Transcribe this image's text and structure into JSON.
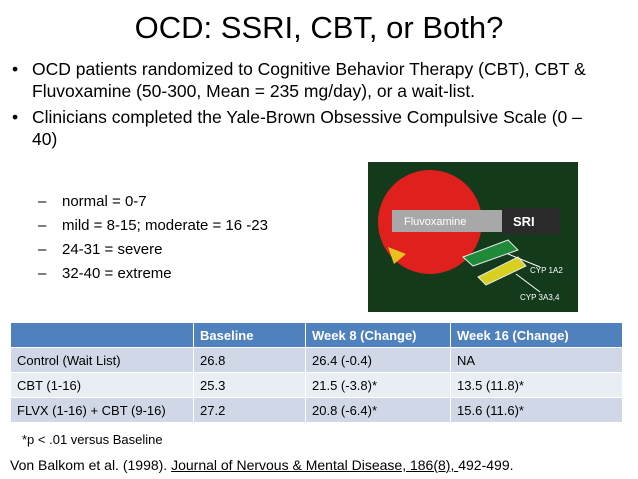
{
  "title": "OCD: SSRI, CBT, or Both?",
  "bullets": [
    "OCD patients randomized to Cognitive Behavior Therapy (CBT), CBT & Fluvoxamine (50-300, Mean = 235 mg/day), or a wait-list.",
    "Clinicians completed the Yale-Brown Obsessive Compulsive Scale (0 – 40)"
  ],
  "subbullets": [
    "normal = 0-7",
    "mild = 8-15; moderate = 16 -23",
    "24-31 = severe",
    "32-40 = extreme"
  ],
  "figure": {
    "labels": [
      "Fluvoxamine",
      "SRI",
      "CYP 1A2",
      "CYP 3A3,4"
    ]
  },
  "table": {
    "header": [
      "",
      "Baseline",
      "Week 8 (Change)",
      "Week 16 (Change)"
    ],
    "rows": [
      [
        "Control (Wait List)",
        "26.8",
        "26.4 (-0.4)",
        "NA"
      ],
      [
        "CBT (1-16)",
        "25.3",
        "21.5 (-3.8)*",
        "13.5 (11.8)*"
      ],
      [
        "FLVX (1-16) + CBT (9-16)",
        "27.2",
        "20.8 (-6.4)*",
        "15.6 (11.6)*"
      ]
    ]
  },
  "footnote": "*p < .01 versus Baseline",
  "citation": {
    "authors": "Von Balkom et al. (1998). ",
    "journal": "Journal of Nervous & Mental Disease, 186(8), ",
    "pages": "492-499."
  }
}
